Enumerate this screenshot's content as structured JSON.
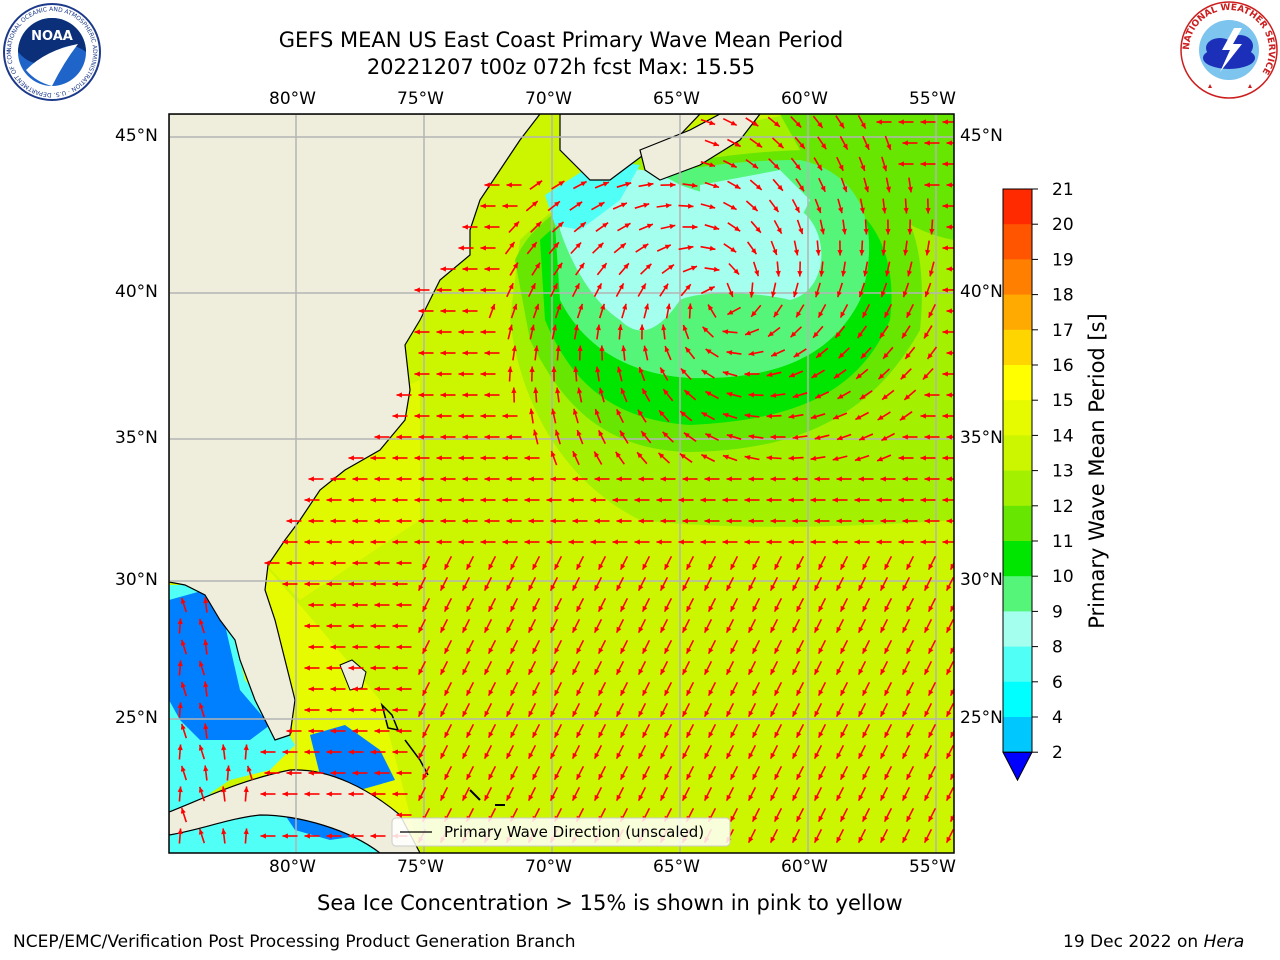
{
  "title": {
    "line1": "GEFS MEAN US East Coast Primary Wave Mean Period",
    "line2": "20221207 t00z 072h fcst   Max: 15.55"
  },
  "map": {
    "lon_labels": [
      "80°W",
      "75°W",
      "70°W",
      "65°W",
      "60°W",
      "55°W"
    ],
    "lat_labels": [
      "45°N",
      "40°N",
      "35°N",
      "30°N",
      "25°N"
    ],
    "legend_label": "Primary Wave Direction (unscaled)",
    "arrow_color": "#ff0000",
    "land_color": "#efeedd",
    "ocean_base_color": "#ccf500"
  },
  "colorbar": {
    "label": "Primary Wave Mean Period [s]",
    "ticks": [
      "21",
      "20",
      "19",
      "18",
      "17",
      "16",
      "15",
      "14",
      "13",
      "12",
      "11",
      "10",
      "9",
      "8",
      "6",
      "4",
      "2"
    ],
    "colors": [
      "#ff0000",
      "#ff2a00",
      "#ff5500",
      "#ff8000",
      "#ffaa00",
      "#ffd500",
      "#ffff00",
      "#e6fa00",
      "#ccf500",
      "#a3f000",
      "#66e600",
      "#00e600",
      "#55f57a",
      "#a4ffee",
      "#50fff5",
      "#00ffff",
      "#00c8ff",
      "#0080ff",
      "#0000ff"
    ]
  },
  "notes": {
    "sea_ice": "Sea Ice Concentration > 15% is shown in pink to yellow",
    "credit": "NCEP/EMC/Verification Post Processing Product Generation Branch",
    "date_prefix": "19 Dec 2022 on",
    "machine": "Hera"
  },
  "logos": {
    "left": "NOAA",
    "left_ring": "NATIONAL OCEANIC AND ATMOSPHERIC ADMINISTRATION · U.S. DEPARTMENT OF COMMERCE",
    "right_ring": "NATIONAL WEATHER SERVICE"
  }
}
